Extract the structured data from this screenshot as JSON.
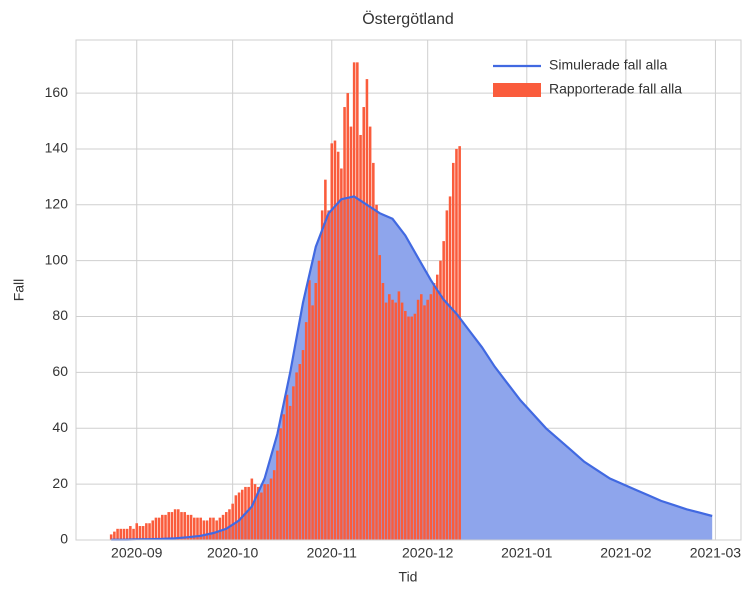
{
  "chart_data": {
    "type": "bar_line",
    "title": "Östergötland",
    "xlabel": "Tid",
    "ylabel": "Fall",
    "xlim": [
      "2020-08-13",
      "2021-03-09"
    ],
    "xticks": [
      {
        "value": "2020-09-01",
        "label": "2020-09"
      },
      {
        "value": "2020-10-01",
        "label": "2020-10"
      },
      {
        "value": "2020-11-01",
        "label": "2020-11"
      },
      {
        "value": "2020-12-01",
        "label": "2020-12"
      },
      {
        "value": "2021-01-01",
        "label": "2021-01"
      },
      {
        "value": "2021-02-01",
        "label": "2021-02"
      },
      {
        "value": "2021-03-01",
        "label": "2021-03"
      }
    ],
    "ylim": [
      0,
      179
    ],
    "yticks": [
      0,
      20,
      40,
      60,
      80,
      100,
      120,
      140,
      160
    ],
    "grid": true,
    "legend": "upper right",
    "series": [
      {
        "name": "Simulerade fall alla",
        "kind": "line",
        "color": "#4169e1",
        "fill_color": "#8ea5ec",
        "x": [
          "2020-08-24",
          "2020-08-28",
          "2020-09-01",
          "2020-09-05",
          "2020-09-09",
          "2020-09-13",
          "2020-09-17",
          "2020-09-21",
          "2020-09-25",
          "2020-09-29",
          "2020-10-03",
          "2020-10-07",
          "2020-10-11",
          "2020-10-15",
          "2020-10-19",
          "2020-10-23",
          "2020-10-27",
          "2020-10-31",
          "2020-11-04",
          "2020-11-08",
          "2020-11-12",
          "2020-11-16",
          "2020-11-20",
          "2020-11-24",
          "2020-11-28",
          "2020-12-02",
          "2020-12-06",
          "2020-12-10",
          "2020-12-14",
          "2020-12-18",
          "2020-12-22",
          "2020-12-26",
          "2020-12-30",
          "2021-01-03",
          "2021-01-07",
          "2021-01-11",
          "2021-01-15",
          "2021-01-19",
          "2021-01-23",
          "2021-01-27",
          "2021-01-31",
          "2021-02-04",
          "2021-02-08",
          "2021-02-12",
          "2021-02-16",
          "2021-02-20",
          "2021-02-24",
          "2021-02-28"
        ],
        "values": [
          0.1,
          0.1,
          0.2,
          0.3,
          0.4,
          0.6,
          1,
          1.5,
          2.5,
          4,
          7,
          12,
          22,
          38,
          60,
          85,
          105,
          117,
          122,
          123,
          120,
          117,
          115,
          109,
          101,
          93,
          86,
          81,
          75,
          69,
          62,
          56,
          50,
          45,
          40,
          36,
          32,
          28,
          25,
          22,
          20,
          18,
          16,
          14,
          12.5,
          11,
          9.8,
          8.6
        ]
      },
      {
        "name": "Rapporterade fall alla",
        "kind": "bar",
        "color": "#fa5c3c",
        "x": [
          "2020-08-24",
          "2020-08-25",
          "2020-08-26",
          "2020-08-27",
          "2020-08-28",
          "2020-08-29",
          "2020-08-30",
          "2020-08-31",
          "2020-09-01",
          "2020-09-02",
          "2020-09-03",
          "2020-09-04",
          "2020-09-05",
          "2020-09-06",
          "2020-09-07",
          "2020-09-08",
          "2020-09-09",
          "2020-09-10",
          "2020-09-11",
          "2020-09-12",
          "2020-09-13",
          "2020-09-14",
          "2020-09-15",
          "2020-09-16",
          "2020-09-17",
          "2020-09-18",
          "2020-09-19",
          "2020-09-20",
          "2020-09-21",
          "2020-09-22",
          "2020-09-23",
          "2020-09-24",
          "2020-09-25",
          "2020-09-26",
          "2020-09-27",
          "2020-09-28",
          "2020-09-29",
          "2020-09-30",
          "2020-10-01",
          "2020-10-02",
          "2020-10-03",
          "2020-10-04",
          "2020-10-05",
          "2020-10-06",
          "2020-10-07",
          "2020-10-08",
          "2020-10-09",
          "2020-10-10",
          "2020-10-11",
          "2020-10-12",
          "2020-10-13",
          "2020-10-14",
          "2020-10-15",
          "2020-10-16",
          "2020-10-17",
          "2020-10-18",
          "2020-10-19",
          "2020-10-20",
          "2020-10-21",
          "2020-10-22",
          "2020-10-23",
          "2020-10-24",
          "2020-10-25",
          "2020-10-26",
          "2020-10-27",
          "2020-10-28",
          "2020-10-29",
          "2020-10-30",
          "2020-10-31",
          "2020-11-01",
          "2020-11-02",
          "2020-11-03",
          "2020-11-04",
          "2020-11-05",
          "2020-11-06",
          "2020-11-07",
          "2020-11-08",
          "2020-11-09",
          "2020-11-10",
          "2020-11-11",
          "2020-11-12",
          "2020-11-13",
          "2020-11-14",
          "2020-11-15",
          "2020-11-16",
          "2020-11-17",
          "2020-11-18",
          "2020-11-19",
          "2020-11-20",
          "2020-11-21",
          "2020-11-22",
          "2020-11-23",
          "2020-11-24",
          "2020-11-25",
          "2020-11-26",
          "2020-11-27",
          "2020-11-28",
          "2020-11-29",
          "2020-11-30",
          "2020-12-01",
          "2020-12-02",
          "2020-12-03",
          "2020-12-04",
          "2020-12-05",
          "2020-12-06",
          "2020-12-07",
          "2020-12-08",
          "2020-12-09",
          "2020-12-10",
          "2020-12-11"
        ],
        "values": [
          2,
          3,
          4,
          4,
          4,
          4,
          5,
          4,
          6,
          5,
          5,
          6,
          6,
          7,
          8,
          8,
          9,
          9,
          10,
          10,
          11,
          11,
          10,
          10,
          9,
          9,
          8,
          8,
          8,
          7,
          7,
          8,
          8,
          7,
          8,
          9,
          10,
          11,
          13,
          16,
          17,
          18,
          19,
          19,
          22,
          20,
          19,
          17,
          20,
          20,
          22,
          25,
          32,
          40,
          45,
          52,
          48,
          55,
          60,
          63,
          68,
          78,
          93,
          84,
          92,
          100,
          118,
          129,
          118,
          142,
          143,
          139,
          133,
          155,
          160,
          148,
          171,
          171,
          145,
          155,
          165,
          148,
          135,
          120,
          102,
          92,
          85,
          88,
          86,
          85,
          89,
          85,
          82,
          80,
          80,
          81,
          86,
          88,
          84,
          86,
          88,
          92,
          95,
          100,
          107,
          118,
          123,
          135,
          140,
          141
        ]
      }
    ]
  }
}
